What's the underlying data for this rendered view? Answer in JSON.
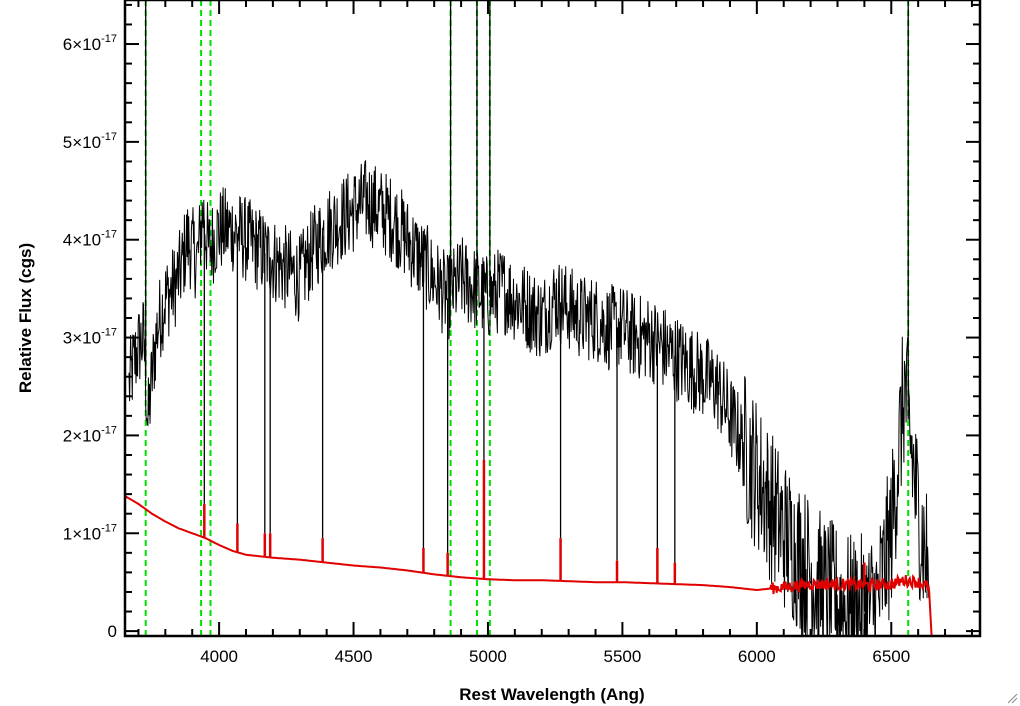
{
  "chart_data": {
    "type": "line",
    "title": "",
    "xlabel": "Rest Wavelength (Ang)",
    "ylabel": "Relative Flux (cgs)",
    "xlim": [
      3650,
      6830
    ],
    "ylim": [
      -0.05,
      6.45
    ],
    "y_scale_exponent": -17,
    "x_ticks": [
      4000,
      4500,
      5000,
      5500,
      6000,
      6500
    ],
    "x_tick_labels": [
      "4000",
      "4500",
      "5000",
      "5500",
      "6000",
      "6500"
    ],
    "y_ticks": [
      0,
      1,
      2,
      3,
      4,
      5,
      6
    ],
    "y_tick_labels": [
      {
        "mantissa": "0",
        "exponent": ""
      },
      {
        "mantissa": "1×10",
        "exponent": "-17"
      },
      {
        "mantissa": "2×10",
        "exponent": "-17"
      },
      {
        "mantissa": "3×10",
        "exponent": "-17"
      },
      {
        "mantissa": "4×10",
        "exponent": "-17"
      },
      {
        "mantissa": "5×10",
        "exponent": "-17"
      },
      {
        "mantissa": "6×10",
        "exponent": "-17"
      }
    ],
    "grid": false,
    "legend": "none",
    "series": [
      {
        "role": "observed spectrum",
        "color": "#000000",
        "style": "solid",
        "x": [
          3665,
          3680,
          3700,
          3720,
          3735,
          3750,
          3770,
          3800,
          3830,
          3860,
          3880,
          3900,
          3920,
          3940,
          3960,
          3980,
          4000,
          4050,
          4100,
          4150,
          4200,
          4250,
          4300,
          4350,
          4400,
          4450,
          4500,
          4550,
          4600,
          4650,
          4700,
          4750,
          4800,
          4850,
          4900,
          4950,
          5000,
          5050,
          5100,
          5150,
          5200,
          5250,
          5300,
          5350,
          5400,
          5450,
          5500,
          5550,
          5600,
          5650,
          5700,
          5750,
          5800,
          5850,
          5900,
          5950,
          6000,
          6050,
          6100,
          6150,
          6200,
          6250,
          6300,
          6350,
          6400,
          6450,
          6500,
          6550,
          6600,
          6640
        ],
        "y": [
          2.5,
          2.7,
          2.9,
          3.0,
          2.1,
          2.6,
          3.1,
          3.4,
          3.5,
          3.7,
          4.0,
          3.9,
          3.8,
          4.3,
          3.9,
          4.0,
          4.1,
          4.1,
          4.0,
          3.9,
          3.8,
          3.7,
          3.6,
          3.9,
          4.1,
          4.2,
          4.3,
          4.4,
          4.3,
          4.2,
          4.0,
          3.8,
          3.6,
          3.4,
          3.6,
          3.5,
          3.4,
          3.5,
          3.4,
          3.3,
          3.2,
          3.4,
          3.3,
          3.2,
          3.2,
          3.1,
          3.1,
          3.0,
          3.0,
          2.9,
          2.8,
          2.7,
          2.6,
          2.5,
          2.2,
          1.9,
          1.6,
          1.3,
          1.0,
          0.8,
          0.6,
          0.4,
          0.3,
          0.2,
          0.2,
          0.3,
          1.0,
          2.5,
          1.2,
          0.6
        ]
      },
      {
        "role": "model continuum",
        "color": "#e00000",
        "style": "solid",
        "x": [
          3650,
          3700,
          3750,
          3800,
          3850,
          3900,
          3950,
          4000,
          4050,
          4100,
          4200,
          4300,
          4400,
          4500,
          4600,
          4700,
          4800,
          4900,
          5000,
          5100,
          5200,
          5300,
          5400,
          5500,
          5600,
          5700,
          5800,
          5900,
          6000,
          6100,
          6200,
          6300,
          6400,
          6500,
          6550,
          6600,
          6640,
          6650,
          6830
        ],
        "y": [
          1.38,
          1.3,
          1.2,
          1.12,
          1.05,
          1.0,
          0.95,
          0.88,
          0.82,
          0.78,
          0.75,
          0.73,
          0.7,
          0.67,
          0.65,
          0.62,
          0.58,
          0.55,
          0.53,
          0.52,
          0.52,
          0.51,
          0.5,
          0.5,
          0.49,
          0.48,
          0.47,
          0.45,
          0.42,
          0.45,
          0.48,
          0.48,
          0.47,
          0.48,
          0.52,
          0.5,
          0.45,
          -0.05,
          -0.05
        ]
      }
    ],
    "emission_lines": [
      {
        "x": 3727,
        "peak": 6.5
      },
      {
        "x": 3945,
        "peak": 1.3
      },
      {
        "x": 4068,
        "peak": 1.1
      },
      {
        "x": 4170,
        "peak": 1.0
      },
      {
        "x": 4190,
        "peak": 1.0
      },
      {
        "x": 4385,
        "peak": 0.95
      },
      {
        "x": 4760,
        "peak": 0.85
      },
      {
        "x": 4850,
        "peak": 0.8
      },
      {
        "x": 4861,
        "peak": 6.5
      },
      {
        "x": 4959,
        "peak": 6.5
      },
      {
        "x": 4985,
        "peak": 1.75
      },
      {
        "x": 5007,
        "peak": 6.5
      },
      {
        "x": 5270,
        "peak": 0.95
      },
      {
        "x": 5480,
        "peak": 0.72
      },
      {
        "x": 5630,
        "peak": 0.85
      },
      {
        "x": 5695,
        "peak": 0.7
      },
      {
        "x": 6400,
        "peak": 0.7
      },
      {
        "x": 6563,
        "peak": 6.5
      }
    ],
    "reference_lines": {
      "color": "#00e000",
      "style": "dashed",
      "x": [
        3727,
        3933,
        3968,
        4861,
        4959,
        5007,
        6563
      ]
    }
  }
}
